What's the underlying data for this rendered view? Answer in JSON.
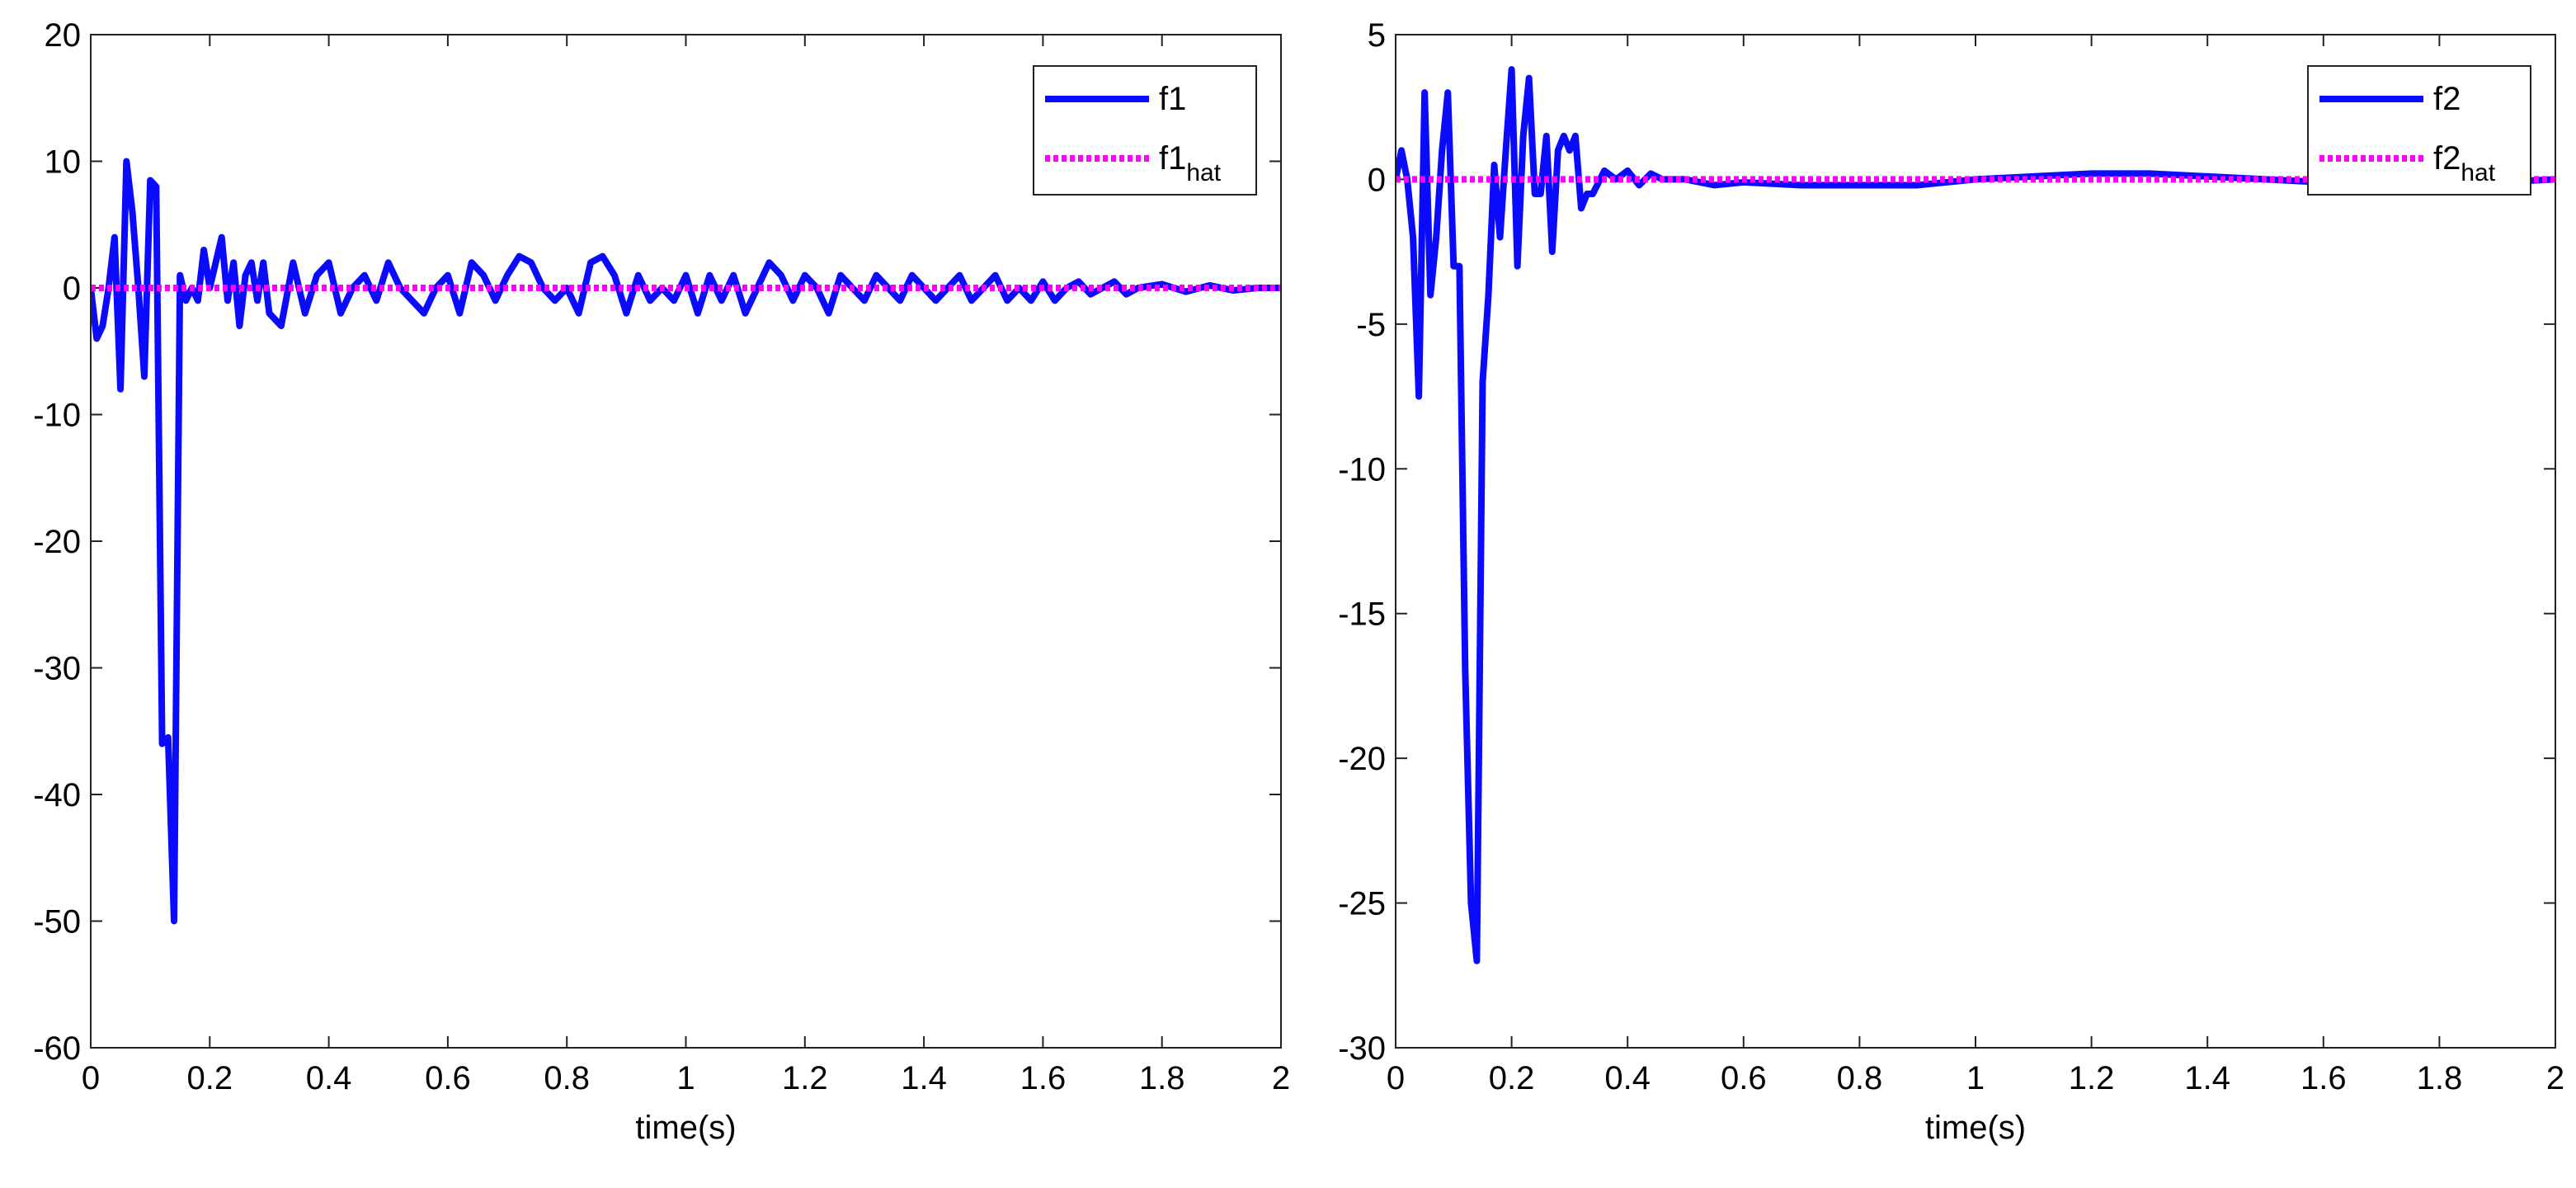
{
  "chart_data": [
    {
      "type": "line",
      "xlabel": "time(s)",
      "xlim": [
        0,
        2
      ],
      "ylim": [
        -60,
        20
      ],
      "xticks": [
        0,
        0.2,
        0.4,
        0.6,
        0.8,
        1,
        1.2,
        1.4,
        1.6,
        1.8,
        2
      ],
      "yticks": [
        -60,
        -50,
        -40,
        -30,
        -20,
        -10,
        0,
        10,
        20
      ],
      "legend": "upper right",
      "grid": false,
      "series": [
        {
          "name": "f1",
          "color": "#0a0aff",
          "style": "solid",
          "x": [
            0,
            0.01,
            0.02,
            0.03,
            0.04,
            0.05,
            0.06,
            0.07,
            0.08,
            0.09,
            0.1,
            0.11,
            0.12,
            0.13,
            0.14,
            0.15,
            0.16,
            0.17,
            0.18,
            0.19,
            0.2,
            0.21,
            0.22,
            0.23,
            0.24,
            0.25,
            0.26,
            0.27,
            0.28,
            0.29,
            0.3,
            0.32,
            0.34,
            0.36,
            0.38,
            0.4,
            0.42,
            0.44,
            0.46,
            0.48,
            0.5,
            0.52,
            0.54,
            0.56,
            0.58,
            0.6,
            0.62,
            0.64,
            0.66,
            0.68,
            0.7,
            0.72,
            0.74,
            0.76,
            0.78,
            0.8,
            0.82,
            0.84,
            0.86,
            0.88,
            0.9,
            0.92,
            0.94,
            0.96,
            0.98,
            1,
            1.02,
            1.04,
            1.06,
            1.08,
            1.1,
            1.12,
            1.14,
            1.16,
            1.18,
            1.2,
            1.22,
            1.24,
            1.26,
            1.28,
            1.3,
            1.32,
            1.34,
            1.36,
            1.38,
            1.4,
            1.42,
            1.44,
            1.46,
            1.48,
            1.5,
            1.52,
            1.54,
            1.56,
            1.58,
            1.6,
            1.62,
            1.64,
            1.66,
            1.68,
            1.7,
            1.72,
            1.74,
            1.76,
            1.8,
            1.84,
            1.88,
            1.92,
            1.96,
            2
          ],
          "values": [
            0,
            -4,
            -3,
            0,
            4,
            -8,
            10,
            6,
            0,
            -7,
            8.5,
            8,
            -36,
            -35.5,
            -50,
            1,
            -1,
            0,
            -1,
            3,
            0,
            2,
            4,
            -1,
            2,
            -3,
            1,
            2,
            -1,
            2,
            -2,
            -3,
            2,
            -2,
            1,
            2,
            -2,
            0,
            1,
            -1,
            2,
            0,
            -1,
            -2,
            0,
            1,
            -2,
            2,
            1,
            -1,
            1,
            2.5,
            2,
            0,
            -1,
            0,
            -2,
            2,
            2.5,
            1,
            -2,
            1,
            -1,
            0,
            -1,
            1,
            -2,
            1,
            -1,
            1,
            -2,
            0,
            2,
            1,
            -1,
            1,
            0,
            -2,
            1,
            0,
            -1,
            1,
            0,
            -1,
            1,
            0,
            -1,
            0,
            1,
            -1,
            0,
            1,
            -1,
            0,
            -1,
            0.5,
            -1,
            0,
            0.5,
            -0.5,
            0,
            0.5,
            -0.5,
            0,
            0.3,
            -0.3,
            0.2,
            -0.2,
            0,
            0
          ]
        },
        {
          "name": "f1",
          "name_sub": "hat",
          "color": "#ff00ff",
          "style": "dotted",
          "x": [
            0,
            2
          ],
          "values": [
            0,
            0
          ]
        }
      ]
    },
    {
      "type": "line",
      "xlabel": "time(s)",
      "xlim": [
        0,
        2
      ],
      "ylim": [
        -30,
        5
      ],
      "xticks": [
        0,
        0.2,
        0.4,
        0.6,
        0.8,
        1,
        1.2,
        1.4,
        1.6,
        1.8,
        2
      ],
      "yticks": [
        -30,
        -25,
        -20,
        -15,
        -10,
        -5,
        0,
        5
      ],
      "legend": "upper right",
      "grid": false,
      "series": [
        {
          "name": "f2",
          "color": "#0a0aff",
          "style": "solid",
          "x": [
            0,
            0.01,
            0.02,
            0.03,
            0.04,
            0.05,
            0.06,
            0.07,
            0.08,
            0.09,
            0.1,
            0.11,
            0.12,
            0.13,
            0.14,
            0.15,
            0.16,
            0.17,
            0.18,
            0.19,
            0.2,
            0.21,
            0.22,
            0.23,
            0.24,
            0.25,
            0.26,
            0.27,
            0.28,
            0.29,
            0.3,
            0.31,
            0.32,
            0.33,
            0.34,
            0.36,
            0.38,
            0.4,
            0.42,
            0.44,
            0.46,
            0.5,
            0.55,
            0.6,
            0.7,
            0.8,
            0.9,
            1,
            1.1,
            1.2,
            1.3,
            1.4,
            1.5,
            1.6,
            1.7,
            1.8,
            1.9,
            2
          ],
          "values": [
            0,
            1,
            0,
            -2,
            -7.5,
            3,
            -4,
            -2,
            1,
            3,
            -3,
            -3,
            -17,
            -25,
            -27,
            -7,
            -4,
            0.5,
            -2,
            1,
            3.8,
            -3,
            1.5,
            3.5,
            -0.5,
            -0.5,
            1.5,
            -2.5,
            1,
            1.5,
            1,
            1.5,
            -1,
            -0.5,
            -0.5,
            0.3,
            0,
            0.3,
            -0.2,
            0.2,
            0,
            0,
            -0.2,
            -0.1,
            -0.2,
            -0.2,
            -0.2,
            0,
            0.1,
            0.2,
            0.2,
            0.1,
            0,
            -0.1,
            -0.2,
            -0.2,
            -0.1,
            0
          ]
        },
        {
          "name": "f2",
          "name_sub": "hat",
          "color": "#ff00ff",
          "style": "dotted",
          "x": [
            0,
            2
          ],
          "values": [
            0,
            0
          ]
        }
      ]
    }
  ]
}
